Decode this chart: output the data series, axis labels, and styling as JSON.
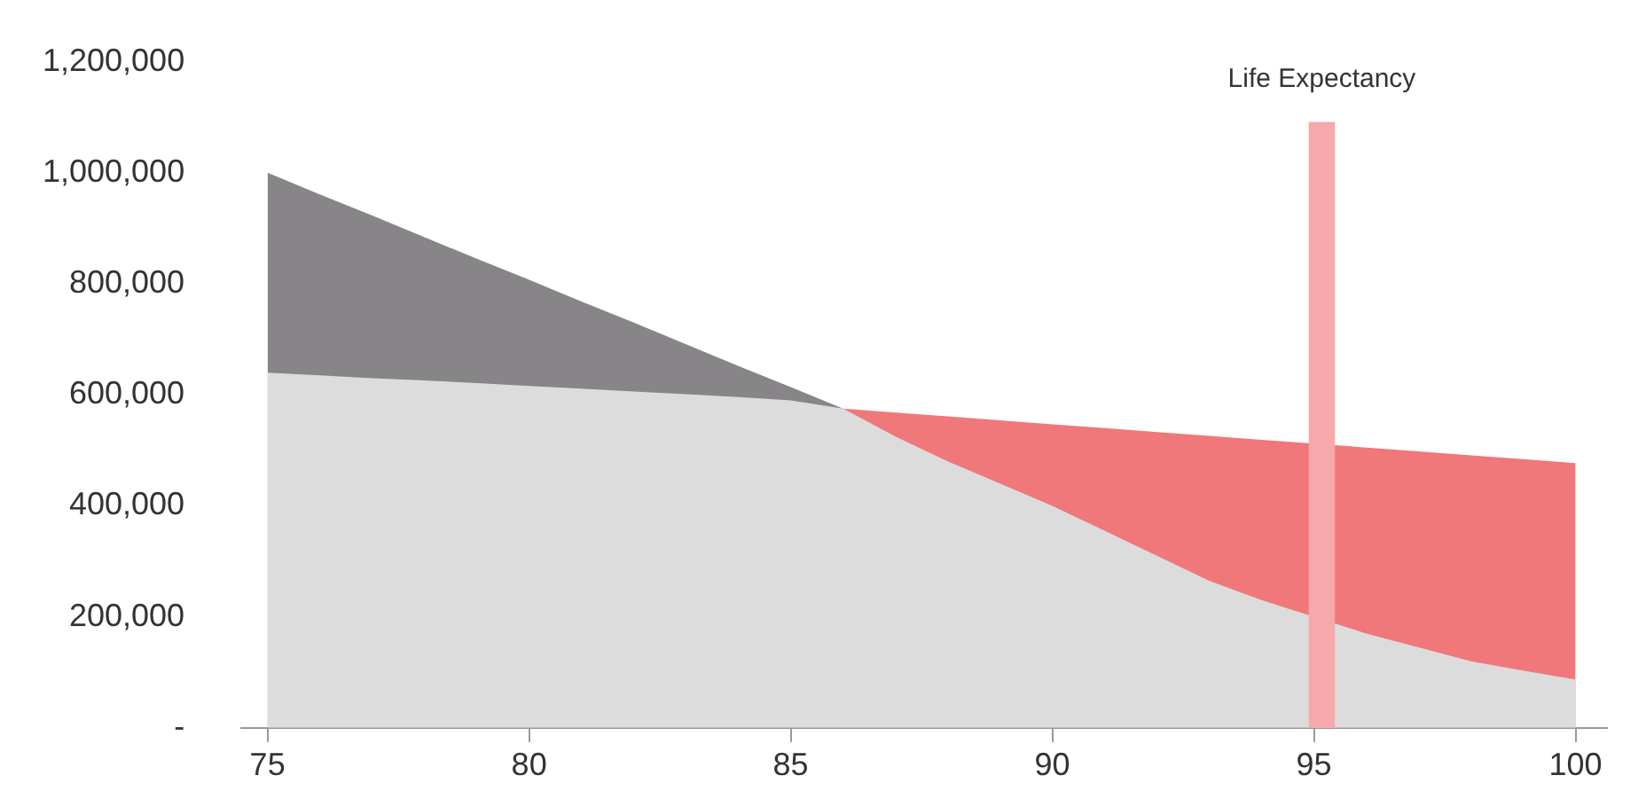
{
  "chart_data": {
    "type": "area",
    "stacked": true,
    "x": [
      75,
      76,
      77,
      78,
      79,
      80,
      81,
      82,
      83,
      84,
      85,
      86,
      87,
      88,
      89,
      90,
      91,
      92,
      93,
      94,
      96,
      97,
      98,
      99,
      100
    ],
    "series": [
      {
        "color": "#dcdcdc",
        "values": [
          640000,
          635000,
          630000,
          626000,
          621000,
          616000,
          611000,
          606000,
          601000,
          596000,
          590000,
          575000,
          525000,
          480000,
          440000,
          400000,
          355000,
          310000,
          265000,
          230000,
          170000,
          145000,
          120000,
          103000,
          87000
        ]
      },
      {
        "color": "#878587",
        "values": [
          360000,
          326000,
          293000,
          258000,
          224000,
          191000,
          157000,
          124000,
          90000,
          56000,
          24000,
          0,
          null,
          null,
          null,
          null,
          null,
          null,
          null,
          null,
          null,
          null,
          null,
          null,
          null
        ]
      },
      {
        "color": "#f0787a",
        "values": [
          null,
          null,
          null,
          null,
          null,
          null,
          null,
          null,
          null,
          null,
          null,
          0,
          43000,
          81000,
          114000,
          147000,
          185000,
          223000,
          261000,
          289000,
          335000,
          353000,
          371000,
          381000,
          390000
        ]
      }
    ],
    "xlim": [
      74.5,
      100.6
    ],
    "xticks": [
      75,
      80,
      85,
      90,
      95,
      100
    ],
    "ylim": [
      0,
      1200000
    ],
    "yticks": [
      {
        "value": 0,
        "label": "-"
      },
      {
        "value": 200000,
        "label": "200,000"
      },
      {
        "value": 400000,
        "label": "400,000"
      },
      {
        "value": 600000,
        "label": "600,000"
      },
      {
        "value": 800000,
        "label": "800,000"
      },
      {
        "value": 1000000,
        "label": "1,000,000"
      },
      {
        "value": 1200000,
        "label": "1,200,000"
      }
    ],
    "bands": [
      {
        "axis": "x",
        "from": 94.9,
        "to": 95.4,
        "label": "Life Expectancy",
        "color": "#f7a8ab"
      }
    ]
  }
}
